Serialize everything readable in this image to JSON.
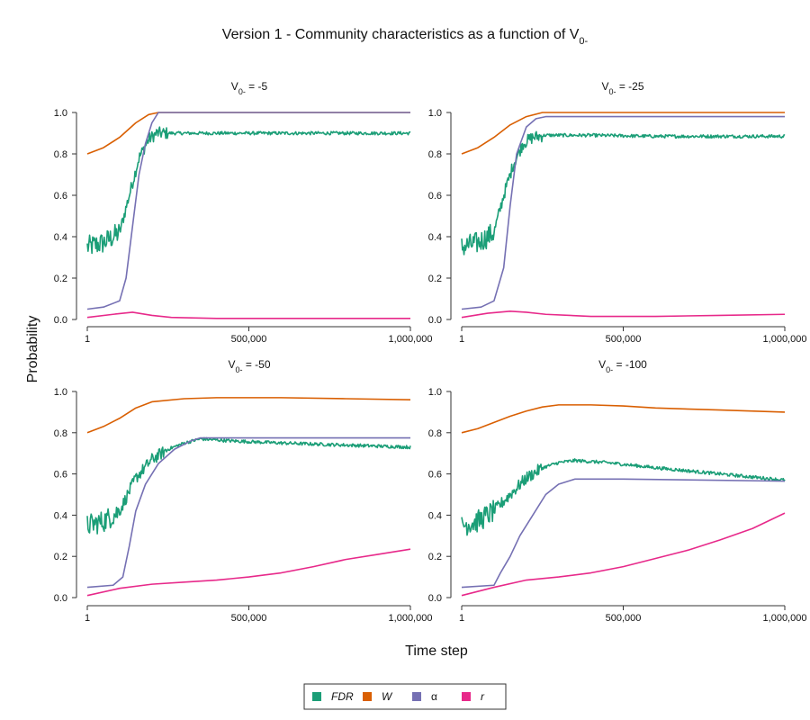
{
  "chart_data": {
    "type": "line",
    "title": "Version 1 - Community characteristics as a function of V",
    "title_subscript": "0-",
    "xlabel": "Time step",
    "ylabel": "Probability",
    "x_ticks": [
      1,
      500000,
      1000000
    ],
    "x_tick_labels": [
      "1",
      "500,000",
      "1,000,000"
    ],
    "y_ticks": [
      0,
      0.2,
      0.4,
      0.6,
      0.8,
      1.0
    ],
    "y_tick_labels": [
      "0.0",
      "0.2",
      "0.4",
      "0.6",
      "0.8",
      "1.0"
    ],
    "xlim": [
      1,
      1000000
    ],
    "ylim": [
      0,
      1
    ],
    "grid": false,
    "legend_position": "bottom-center",
    "legend": [
      {
        "label": "FDR",
        "color": "#1b9e77",
        "italic": true
      },
      {
        "label": "W",
        "color": "#d95f02",
        "italic": true
      },
      {
        "label": "α",
        "color": "#7570b3",
        "italic": false
      },
      {
        "label": "r",
        "color": "#e7298a",
        "italic": true
      }
    ],
    "panels": [
      {
        "subtitle_main": "V",
        "subtitle_sub": "0-",
        "subtitle_rest": " = -5",
        "series": [
          {
            "name": "FDR",
            "color": "#1b9e77",
            "noisy": true,
            "x": [
              1,
              50000,
              100000,
              130000,
              160000,
              190000,
              215000,
              250000,
              400000,
              600000,
              800000,
              1000000
            ],
            "y": [
              0.35,
              0.37,
              0.42,
              0.6,
              0.78,
              0.87,
              0.9,
              0.9,
              0.9,
              0.9,
              0.9,
              0.9
            ]
          },
          {
            "name": "W",
            "color": "#d95f02",
            "x": [
              1,
              50000,
              100000,
              150000,
              190000,
              220000,
              250000,
              500000,
              1000000
            ],
            "y": [
              0.8,
              0.83,
              0.88,
              0.95,
              0.99,
              1.0,
              1.0,
              1.0,
              1.0
            ]
          },
          {
            "name": "α",
            "color": "#7570b3",
            "x": [
              1,
              50000,
              100000,
              120000,
              140000,
              160000,
              180000,
              200000,
              220000,
              250000,
              1000000
            ],
            "y": [
              0.05,
              0.06,
              0.09,
              0.2,
              0.45,
              0.7,
              0.85,
              0.95,
              1.0,
              1.0,
              1.0
            ]
          },
          {
            "name": "r",
            "color": "#e7298a",
            "x": [
              1,
              80000,
              140000,
              200000,
              260000,
              400000,
              600000,
              1000000
            ],
            "y": [
              0.01,
              0.025,
              0.035,
              0.02,
              0.01,
              0.005,
              0.005,
              0.005
            ]
          }
        ]
      },
      {
        "subtitle_main": "V",
        "subtitle_sub": "0-",
        "subtitle_rest": " = -25",
        "series": [
          {
            "name": "FDR",
            "color": "#1b9e77",
            "noisy": true,
            "x": [
              1,
              50000,
              100000,
              130000,
              160000,
              190000,
              220000,
              260000,
              400000,
              600000,
              800000,
              1000000
            ],
            "y": [
              0.35,
              0.37,
              0.42,
              0.6,
              0.75,
              0.85,
              0.88,
              0.89,
              0.89,
              0.885,
              0.885,
              0.885
            ]
          },
          {
            "name": "W",
            "color": "#d95f02",
            "x": [
              1,
              50000,
              100000,
              150000,
              200000,
              250000,
              300000,
              1000000
            ],
            "y": [
              0.8,
              0.83,
              0.88,
              0.94,
              0.98,
              1.0,
              1.0,
              1.0
            ]
          },
          {
            "name": "α",
            "color": "#7570b3",
            "x": [
              1,
              60000,
              100000,
              130000,
              150000,
              170000,
              200000,
              230000,
              260000,
              1000000
            ],
            "y": [
              0.05,
              0.06,
              0.09,
              0.25,
              0.55,
              0.8,
              0.93,
              0.97,
              0.98,
              0.98
            ]
          },
          {
            "name": "r",
            "color": "#e7298a",
            "x": [
              1,
              80000,
              150000,
              200000,
              260000,
              400000,
              600000,
              800000,
              1000000
            ],
            "y": [
              0.01,
              0.03,
              0.04,
              0.035,
              0.025,
              0.015,
              0.015,
              0.02,
              0.025
            ]
          }
        ]
      },
      {
        "subtitle_main": "V",
        "subtitle_sub": "0-",
        "subtitle_rest": " = -50",
        "series": [
          {
            "name": "FDR",
            "color": "#1b9e77",
            "noisy": true,
            "x": [
              1,
              50000,
              100000,
              150000,
              200000,
              250000,
              300000,
              350000,
              450000,
              600000,
              800000,
              1000000
            ],
            "y": [
              0.35,
              0.37,
              0.42,
              0.58,
              0.67,
              0.72,
              0.75,
              0.77,
              0.76,
              0.75,
              0.74,
              0.73
            ]
          },
          {
            "name": "W",
            "color": "#d95f02",
            "x": [
              1,
              50000,
              100000,
              150000,
              200000,
              300000,
              400000,
              600000,
              800000,
              1000000
            ],
            "y": [
              0.8,
              0.83,
              0.87,
              0.92,
              0.95,
              0.965,
              0.97,
              0.97,
              0.965,
              0.96
            ]
          },
          {
            "name": "α",
            "color": "#7570b3",
            "x": [
              1,
              80000,
              110000,
              130000,
              150000,
              180000,
              220000,
              270000,
              320000,
              350000,
              1000000
            ],
            "y": [
              0.05,
              0.06,
              0.1,
              0.25,
              0.42,
              0.55,
              0.65,
              0.72,
              0.76,
              0.775,
              0.775
            ]
          },
          {
            "name": "r",
            "color": "#e7298a",
            "x": [
              1,
              100000,
              200000,
              300000,
              400000,
              500000,
              600000,
              700000,
              800000,
              900000,
              1000000
            ],
            "y": [
              0.01,
              0.045,
              0.065,
              0.075,
              0.085,
              0.1,
              0.12,
              0.15,
              0.185,
              0.21,
              0.235
            ]
          }
        ]
      },
      {
        "subtitle_main": "V",
        "subtitle_sub": "0-",
        "subtitle_rest": " = -100",
        "series": [
          {
            "name": "FDR",
            "color": "#1b9e77",
            "noisy": true,
            "x": [
              1,
              50000,
              100000,
              150000,
              200000,
              250000,
              300000,
              350000,
              450000,
              600000,
              800000,
              1000000
            ],
            "y": [
              0.35,
              0.37,
              0.42,
              0.5,
              0.58,
              0.63,
              0.655,
              0.665,
              0.655,
              0.63,
              0.6,
              0.57
            ]
          },
          {
            "name": "W",
            "color": "#d95f02",
            "x": [
              1,
              50000,
              100000,
              150000,
              200000,
              250000,
              300000,
              400000,
              500000,
              600000,
              800000,
              1000000
            ],
            "y": [
              0.8,
              0.82,
              0.85,
              0.88,
              0.905,
              0.925,
              0.935,
              0.935,
              0.93,
              0.92,
              0.91,
              0.9
            ]
          },
          {
            "name": "α",
            "color": "#7570b3",
            "x": [
              1,
              100000,
              120000,
              150000,
              180000,
              220000,
              260000,
              300000,
              350000,
              500000,
              1000000
            ],
            "y": [
              0.05,
              0.06,
              0.12,
              0.2,
              0.3,
              0.4,
              0.5,
              0.55,
              0.575,
              0.575,
              0.565
            ]
          },
          {
            "name": "r",
            "color": "#e7298a",
            "x": [
              1,
              100000,
              200000,
              300000,
              400000,
              500000,
              600000,
              700000,
              800000,
              900000,
              1000000
            ],
            "y": [
              0.01,
              0.05,
              0.085,
              0.1,
              0.12,
              0.15,
              0.19,
              0.23,
              0.28,
              0.335,
              0.41
            ]
          }
        ]
      }
    ]
  }
}
